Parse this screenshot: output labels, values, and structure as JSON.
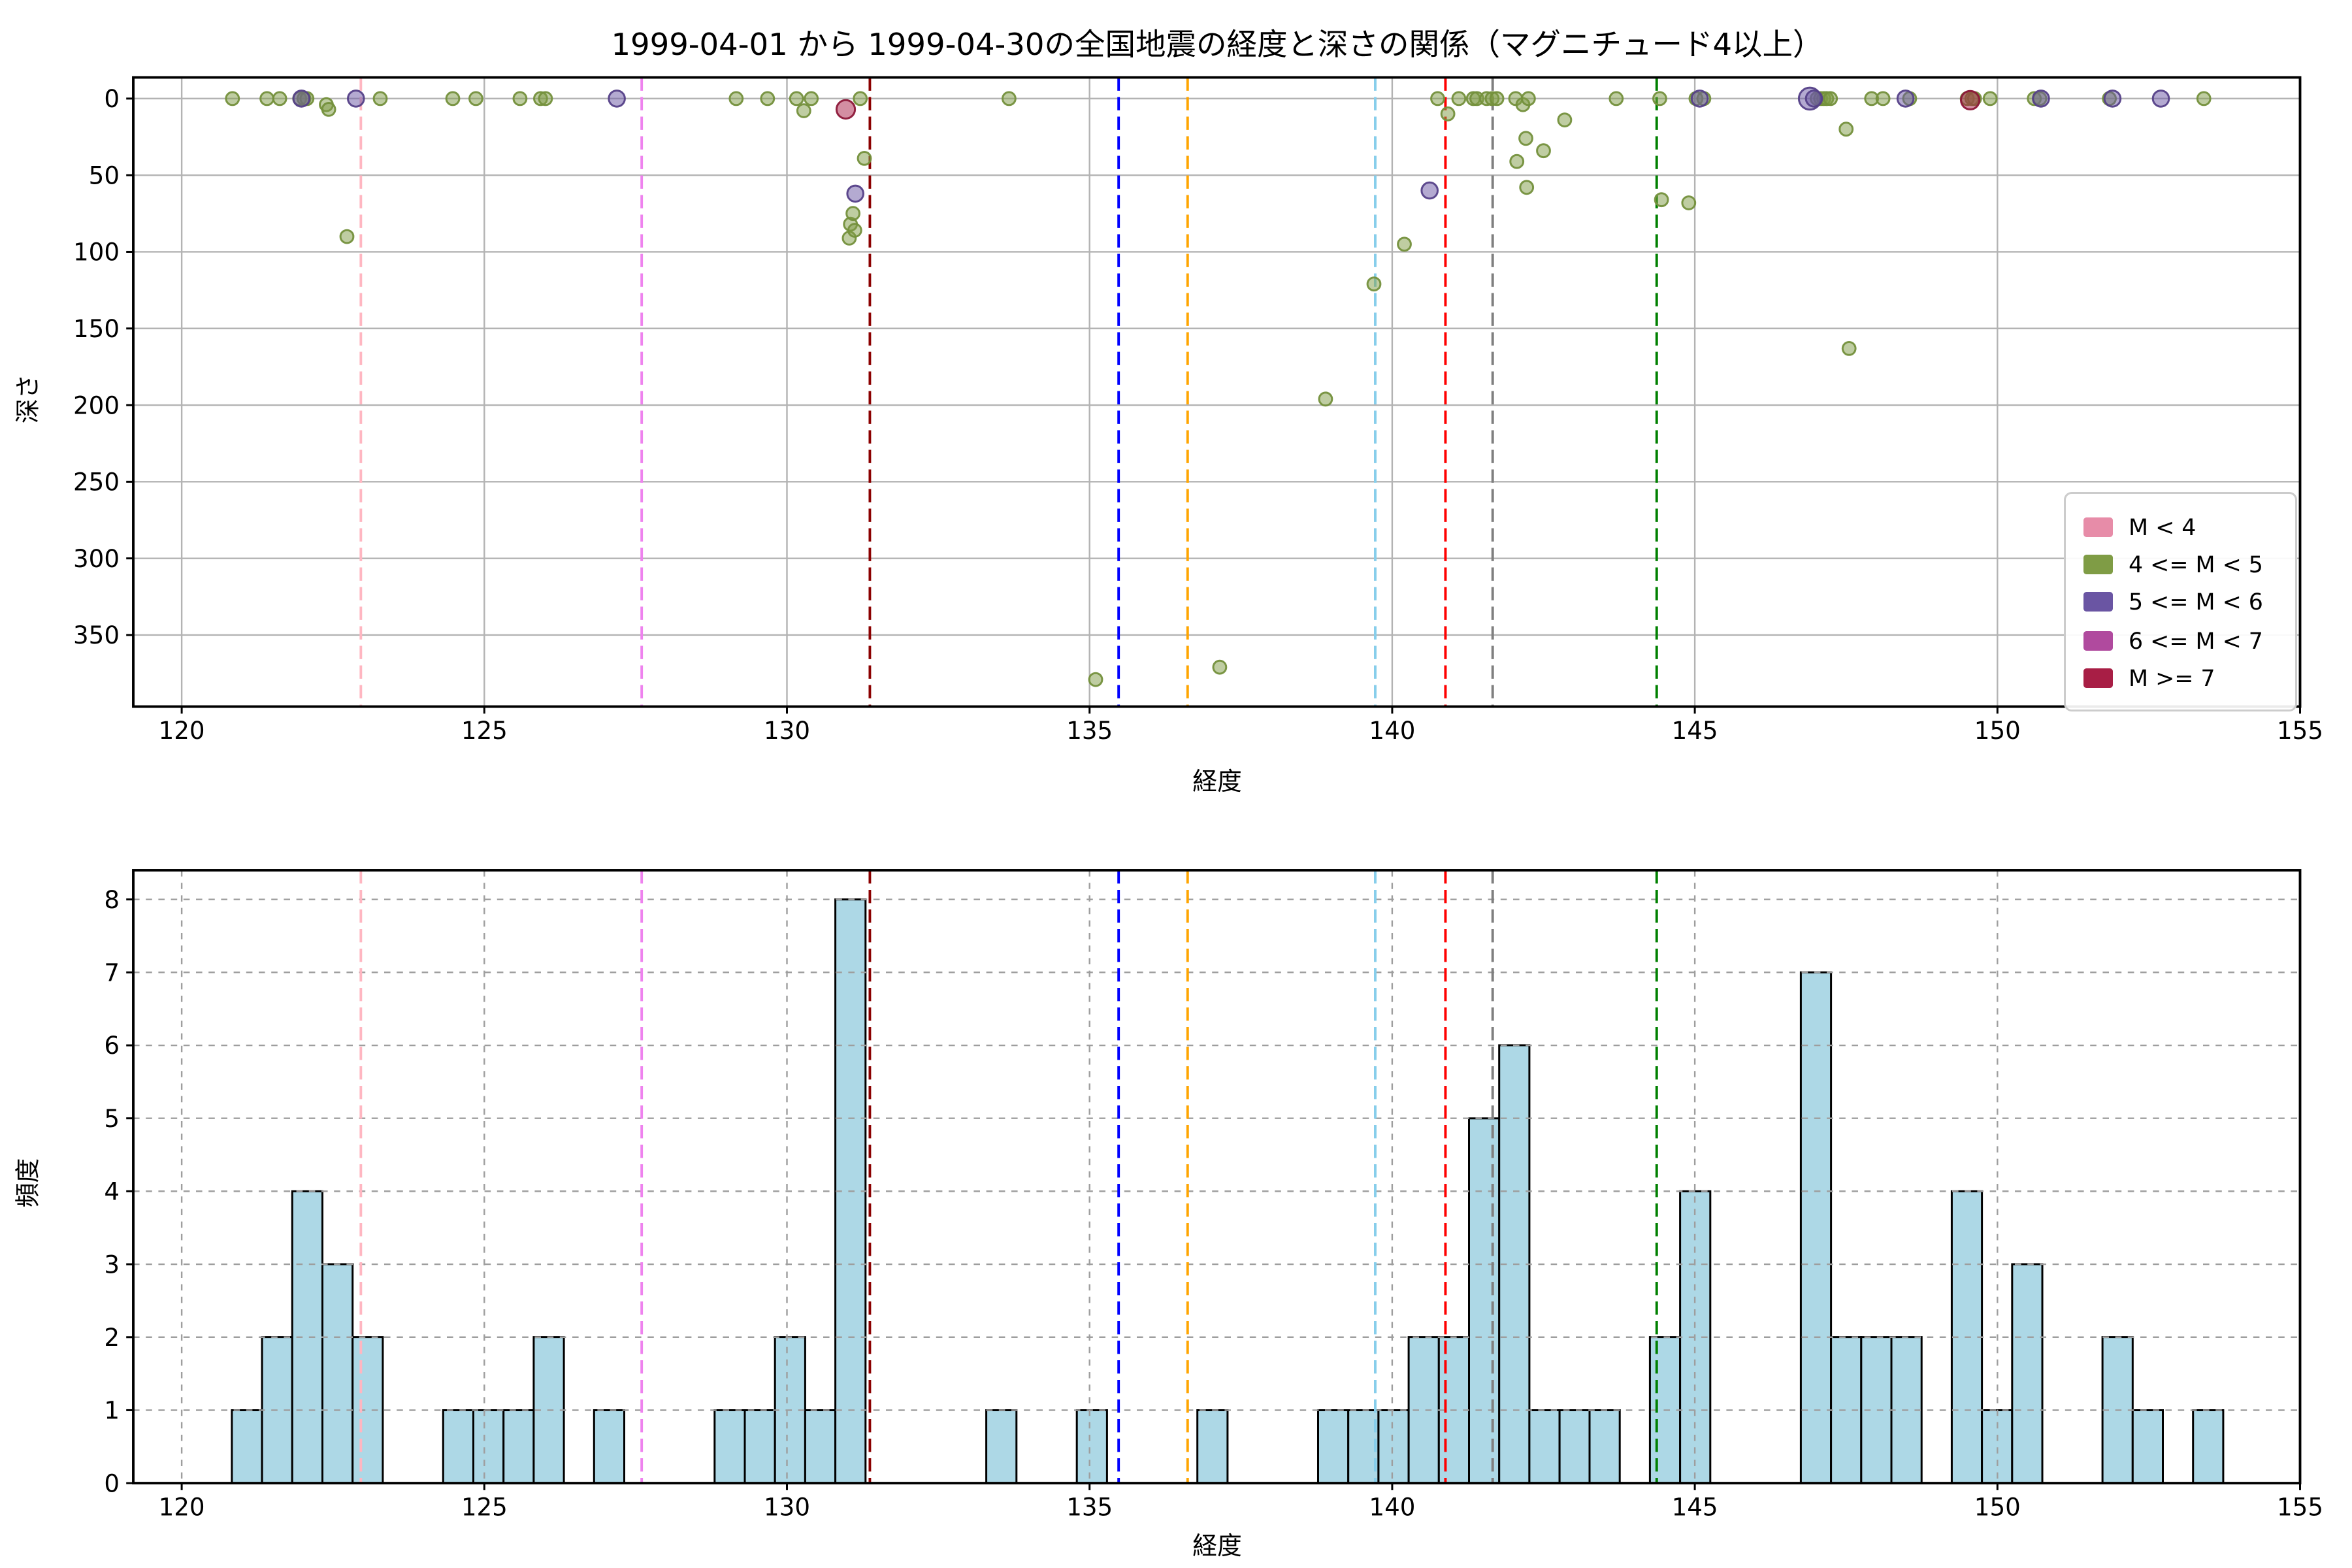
{
  "figure": {
    "title": "1999-04-01 から 1999-04-30の全国地震の経度と深さの関係（マグニチュード4以上）",
    "background_color": "#ffffff"
  },
  "reference_lines": [
    {
      "x": 122.96,
      "color": "#ffb6c1"
    },
    {
      "x": 127.6,
      "color": "#ee82ee"
    },
    {
      "x": 131.37,
      "color": "#8b0000"
    },
    {
      "x": 135.48,
      "color": "#0000ff"
    },
    {
      "x": 136.62,
      "color": "#ffa500"
    },
    {
      "x": 139.72,
      "color": "#87ceeb"
    },
    {
      "x": 140.88,
      "color": "#ff0000"
    },
    {
      "x": 141.66,
      "color": "#7f7f7f"
    },
    {
      "x": 144.37,
      "color": "#008000"
    }
  ],
  "chart_data": [
    {
      "type": "scatter",
      "name": "depth-vs-longitude-scatter",
      "xlabel": "経度",
      "ylabel": "深さ",
      "xlim": [
        119.2,
        155.0
      ],
      "ylim": [
        -13.8,
        396.7
      ],
      "y_inverted": true,
      "xticks": [
        120,
        125,
        130,
        135,
        140,
        145,
        150,
        155
      ],
      "yticks": [
        0,
        50,
        100,
        150,
        200,
        250,
        300,
        350
      ],
      "grid": {
        "style": "solid",
        "color": "#b3b3b3"
      },
      "legend_position": "lower right",
      "series": [
        {
          "label": "M < 4",
          "color": "#e78ca8",
          "edge_color": "#d6728f",
          "marker_radius": 3.2,
          "points": []
        },
        {
          "label": "4 <= M < 5",
          "color": "#7f9c45",
          "edge_color": "#74903c",
          "marker_radius": 3.3,
          "points": [
            [
              120.84,
              0
            ],
            [
              121.41,
              0
            ],
            [
              121.62,
              0
            ],
            [
              121.95,
              0
            ],
            [
              122.02,
              0
            ],
            [
              122.07,
              0
            ],
            [
              122.39,
              4
            ],
            [
              122.43,
              7
            ],
            [
              122.73,
              90
            ],
            [
              123.28,
              0
            ],
            [
              124.48,
              0
            ],
            [
              124.86,
              0
            ],
            [
              125.59,
              0
            ],
            [
              125.93,
              0
            ],
            [
              126.01,
              0
            ],
            [
              129.16,
              0
            ],
            [
              129.68,
              0
            ],
            [
              130.16,
              0
            ],
            [
              130.28,
              8
            ],
            [
              130.4,
              0
            ],
            [
              131.03,
              91
            ],
            [
              131.05,
              82
            ],
            [
              131.09,
              75
            ],
            [
              131.12,
              86
            ],
            [
              131.21,
              0
            ],
            [
              131.28,
              39
            ],
            [
              133.67,
              0
            ],
            [
              135.1,
              379
            ],
            [
              137.15,
              371
            ],
            [
              138.9,
              196
            ],
            [
              139.7,
              121
            ],
            [
              140.2,
              95
            ],
            [
              140.75,
              0
            ],
            [
              140.92,
              10
            ],
            [
              141.1,
              0
            ],
            [
              141.34,
              0
            ],
            [
              141.4,
              0
            ],
            [
              141.56,
              0
            ],
            [
              141.65,
              0
            ],
            [
              141.73,
              0
            ],
            [
              142.04,
              0
            ],
            [
              142.06,
              41
            ],
            [
              142.16,
              4
            ],
            [
              142.21,
              26
            ],
            [
              142.22,
              58
            ],
            [
              142.25,
              0
            ],
            [
              142.5,
              34
            ],
            [
              142.85,
              14
            ],
            [
              143.7,
              0
            ],
            [
              144.42,
              0
            ],
            [
              144.45,
              66
            ],
            [
              144.9,
              68
            ],
            [
              145.02,
              0
            ],
            [
              145.15,
              0
            ],
            [
              147.02,
              0
            ],
            [
              147.08,
              0
            ],
            [
              147.13,
              0
            ],
            [
              147.18,
              0
            ],
            [
              147.24,
              0
            ],
            [
              147.5,
              20
            ],
            [
              147.55,
              163
            ],
            [
              147.92,
              0
            ],
            [
              148.11,
              0
            ],
            [
              148.55,
              0
            ],
            [
              149.5,
              0
            ],
            [
              149.58,
              0
            ],
            [
              149.62,
              0
            ],
            [
              149.88,
              0
            ],
            [
              150.61,
              0
            ],
            [
              150.7,
              0
            ],
            [
              151.85,
              0
            ],
            [
              153.41,
              0
            ]
          ]
        },
        {
          "label": "5 <= M < 6",
          "color": "#6a55a3",
          "edge_color": "#554088",
          "marker_radius": 4.1,
          "points": [
            [
              121.98,
              0
            ],
            [
              122.88,
              0
            ],
            [
              127.19,
              0
            ],
            [
              131.13,
              62
            ],
            [
              140.62,
              60
            ],
            [
              145.08,
              0
            ],
            [
              146.9,
              0,
              5.6
            ],
            [
              146.97,
              0
            ],
            [
              148.48,
              0
            ],
            [
              150.72,
              0
            ],
            [
              151.9,
              0
            ],
            [
              152.7,
              0
            ]
          ]
        },
        {
          "label": "6 <= M < 7",
          "color": "#b04a9e",
          "edge_color": "#9a3b89",
          "marker_radius": 4.4,
          "points": []
        },
        {
          "label": "M >= 7",
          "color": "#a81e45",
          "edge_color": "#8c1738",
          "marker_radius": 4.7,
          "points": [
            [
              130.97,
              7
            ],
            [
              149.55,
              1
            ]
          ]
        }
      ]
    },
    {
      "type": "bar",
      "name": "longitude-histogram",
      "xlabel": "経度",
      "ylabel": "頻度",
      "xlim": [
        119.2,
        155.0
      ],
      "ylim": [
        0,
        8.4
      ],
      "xticks": [
        120,
        125,
        130,
        135,
        140,
        145,
        150,
        155
      ],
      "yticks": [
        0,
        1,
        2,
        3,
        4,
        5,
        6,
        7,
        8
      ],
      "grid": {
        "style": "dashed",
        "color": "#9e9e9e"
      },
      "bin_start": 120.83,
      "bin_width": 0.4985,
      "counts": [
        1,
        2,
        4,
        3,
        2,
        0,
        0,
        1,
        1,
        1,
        2,
        0,
        1,
        0,
        0,
        0,
        1,
        1,
        2,
        1,
        8,
        0,
        0,
        0,
        0,
        1,
        0,
        0,
        1,
        0,
        0,
        0,
        1,
        0,
        0,
        0,
        1,
        1,
        1,
        2,
        2,
        5,
        6,
        1,
        1,
        1,
        0,
        2,
        4,
        0,
        0,
        0,
        7,
        2,
        2,
        2,
        0,
        4,
        1,
        3,
        0,
        0,
        2,
        1,
        0,
        1
      ],
      "bar_color": "#add8e6",
      "bar_edge_color": "#000000"
    }
  ]
}
